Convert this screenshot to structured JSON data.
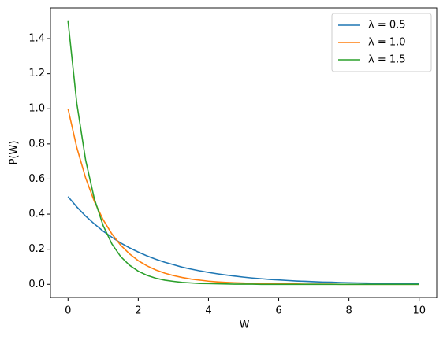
{
  "chart_data": {
    "type": "line",
    "xlabel": "W",
    "ylabel": "P(W)",
    "x": [
      0,
      0.25,
      0.5,
      0.75,
      1,
      1.25,
      1.5,
      1.75,
      2,
      2.25,
      2.5,
      2.75,
      3,
      3.25,
      3.5,
      3.75,
      4,
      4.25,
      4.5,
      4.75,
      5,
      5.25,
      5.5,
      5.75,
      6,
      6.25,
      6.5,
      6.75,
      7,
      7.25,
      7.5,
      7.75,
      8,
      8.25,
      8.5,
      8.75,
      9,
      9.25,
      9.5,
      9.75,
      10
    ],
    "series": [
      {
        "name": "λ = 0.5",
        "color": "#1f77b4",
        "values": [
          0.5,
          0.441,
          0.389,
          0.344,
          0.303,
          0.268,
          0.236,
          0.208,
          0.184,
          0.162,
          0.143,
          0.126,
          0.112,
          0.098,
          0.087,
          0.077,
          0.068,
          0.06,
          0.053,
          0.047,
          0.041,
          0.036,
          0.032,
          0.028,
          0.025,
          0.022,
          0.019,
          0.017,
          0.015,
          0.013,
          0.012,
          0.01,
          0.009,
          0.008,
          0.007,
          0.006,
          0.006,
          0.005,
          0.004,
          0.004,
          0.003
        ]
      },
      {
        "name": "λ = 1.0",
        "color": "#ff7f0e",
        "values": [
          1,
          0.779,
          0.607,
          0.472,
          0.368,
          0.287,
          0.223,
          0.174,
          0.135,
          0.105,
          0.082,
          0.064,
          0.05,
          0.039,
          0.03,
          0.024,
          0.018,
          0.014,
          0.011,
          0.009,
          0.007,
          0.005,
          0.004,
          0.003,
          0.002,
          0.002,
          0.002,
          0.001,
          0.001,
          0.001,
          0.001,
          0,
          0,
          0,
          0,
          0,
          0,
          0,
          0,
          0,
          0
        ]
      },
      {
        "name": "λ = 1.5",
        "color": "#2ca02c",
        "values": [
          1.5,
          1.031,
          0.709,
          0.487,
          0.335,
          0.23,
          0.158,
          0.109,
          0.075,
          0.051,
          0.035,
          0.024,
          0.017,
          0.011,
          0.008,
          0.005,
          0.004,
          0.003,
          0.002,
          0.001,
          0.001,
          0.001,
          0,
          0,
          0,
          0,
          0,
          0,
          0,
          0,
          0,
          0,
          0,
          0,
          0,
          0,
          0,
          0,
          0,
          0,
          0
        ]
      }
    ],
    "xlim": [
      -0.5,
      10.5
    ],
    "xticks": [
      0,
      2,
      4,
      6,
      8,
      10
    ],
    "ylim": [
      -0.075,
      1.575
    ],
    "yticks": [
      {
        "value": 0,
        "label": "0.0"
      },
      0.2,
      0.4,
      0.6,
      0.8,
      {
        "value": 1,
        "label": "1.0"
      },
      1.2,
      1.4
    ],
    "legend": "upper right",
    "grid": false
  }
}
